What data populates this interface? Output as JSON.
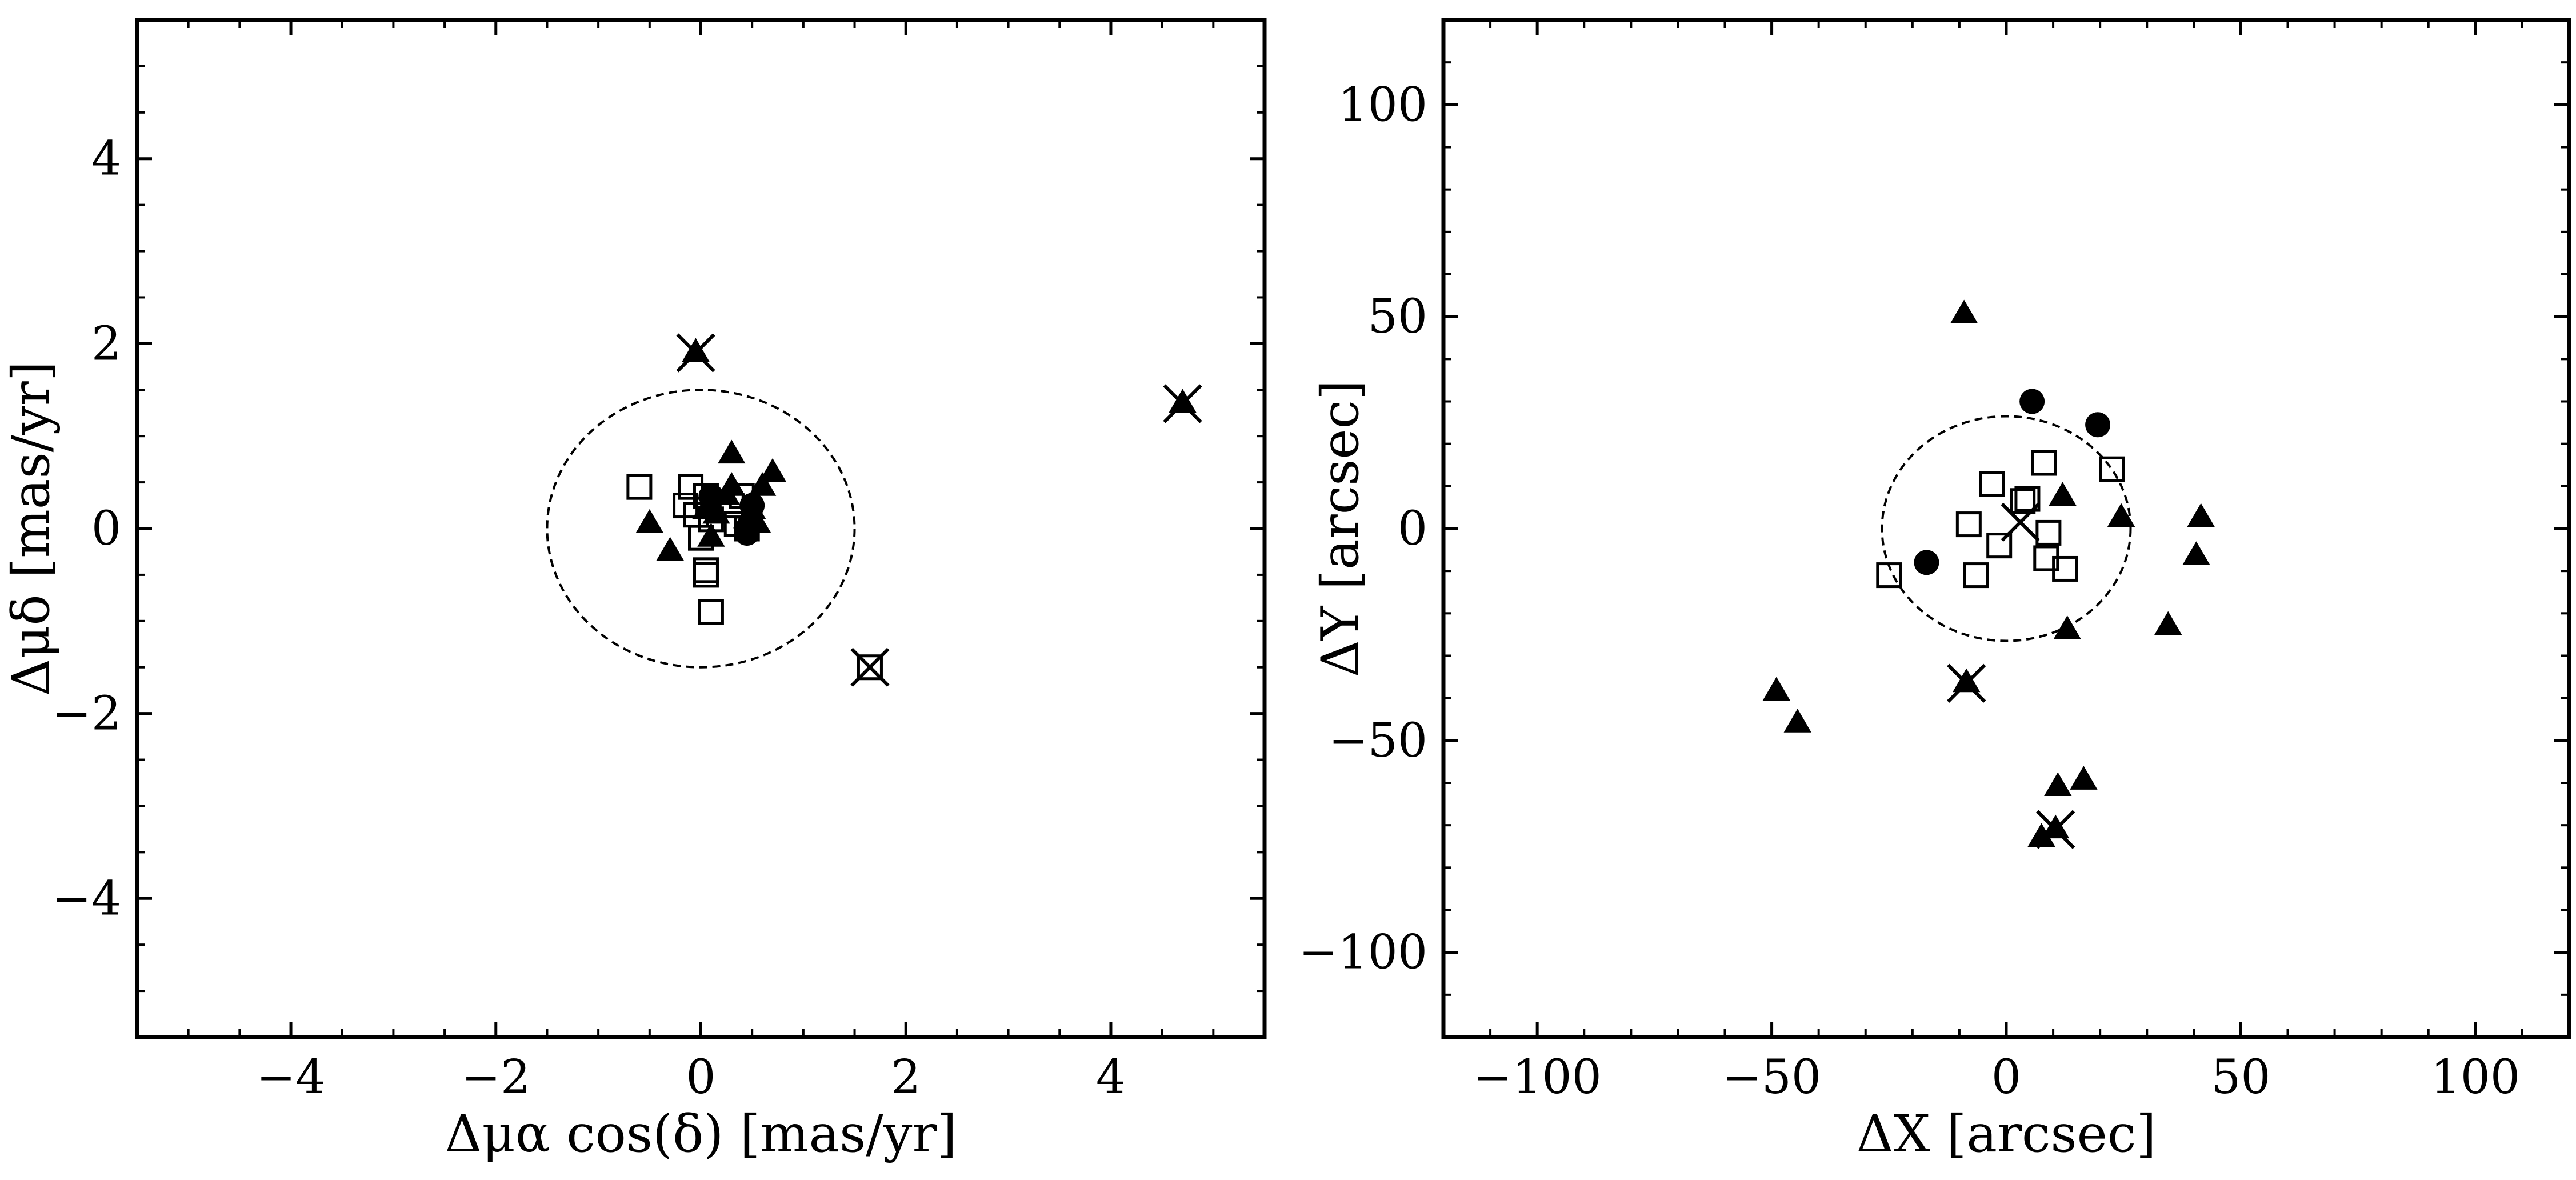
{
  "figure": {
    "background": "#ffffff",
    "ink": "#000000"
  },
  "chart_data": [
    {
      "id": "left",
      "type": "scatter",
      "title": "",
      "xlabel": "Δμα cos(δ) [mas/yr]",
      "ylabel": "Δμδ [mas/yr]",
      "xlim": [
        -5.5,
        5.5
      ],
      "ylim": [
        -5.5,
        5.5
      ],
      "xticks": [
        -4,
        -2,
        0,
        2,
        4
      ],
      "yticks": [
        -4,
        -2,
        0,
        2,
        4
      ],
      "xtick_labels": [
        "−4",
        "−2",
        "0",
        "2",
        "4"
      ],
      "ytick_labels": [
        "−4",
        "−2",
        "0",
        "2",
        "4"
      ],
      "minor_step": 0.5,
      "grid": false,
      "legend": "none",
      "dashed_circle": {
        "cx": 0,
        "cy": 0,
        "r": 1.5
      },
      "squares": [
        [
          -0.6,
          0.45
        ],
        [
          -0.1,
          0.45
        ],
        [
          -0.15,
          0.25
        ],
        [
          0.05,
          0.35
        ],
        [
          -0.05,
          0.15
        ],
        [
          0.1,
          0.1
        ],
        [
          0.3,
          0.25
        ],
        [
          0.4,
          0.35
        ],
        [
          0.35,
          0.05
        ],
        [
          0.45,
          0.0
        ],
        [
          0.0,
          -0.1
        ],
        [
          0.05,
          -0.45
        ],
        [
          0.05,
          -0.5
        ],
        [
          0.1,
          -0.9
        ]
      ],
      "circles": [
        [
          0.1,
          0.35
        ],
        [
          0.45,
          -0.05
        ],
        [
          0.5,
          0.25
        ]
      ],
      "triangles": [
        [
          -0.5,
          0.05
        ],
        [
          -0.3,
          -0.25
        ],
        [
          0.05,
          0.2
        ],
        [
          0.15,
          0.15
        ],
        [
          0.25,
          0.35
        ],
        [
          0.3,
          0.8
        ],
        [
          0.3,
          0.45
        ],
        [
          0.5,
          0.2
        ],
        [
          0.55,
          0.05
        ],
        [
          0.6,
          0.45
        ],
        [
          0.7,
          0.6
        ],
        [
          0.45,
          0.1
        ],
        [
          0.1,
          -0.1
        ],
        [
          -0.05,
          1.9
        ],
        [
          4.7,
          1.35
        ]
      ],
      "crosses": [
        [
          -0.05,
          1.9
        ],
        [
          4.7,
          1.35
        ],
        [
          1.65,
          -1.5
        ]
      ],
      "square_crosses": [
        [
          1.65,
          -1.5
        ]
      ]
    },
    {
      "id": "right",
      "type": "scatter",
      "title": "",
      "xlabel": "ΔX [arcsec]",
      "ylabel": "ΔY [arcsec]",
      "xlim": [
        -120,
        120
      ],
      "ylim": [
        -120,
        120
      ],
      "xticks": [
        -100,
        -50,
        0,
        50,
        100
      ],
      "yticks": [
        -100,
        -50,
        0,
        50,
        100
      ],
      "xtick_labels": [
        "−100",
        "−50",
        "0",
        "50",
        "100"
      ],
      "ytick_labels": [
        "−100",
        "−50",
        "0",
        "50",
        "100"
      ],
      "minor_step": 10,
      "grid": false,
      "legend": "none",
      "dashed_circle": {
        "cx": 0,
        "cy": 0,
        "r": 26.5
      },
      "squares": [
        [
          -25,
          -11
        ],
        [
          -8,
          1
        ],
        [
          -3,
          10.5
        ],
        [
          -6.5,
          -11
        ],
        [
          -1.5,
          -4
        ],
        [
          3.5,
          6.5
        ],
        [
          4.5,
          7
        ],
        [
          8,
          15.5
        ],
        [
          9,
          -1
        ],
        [
          8.5,
          -7
        ],
        [
          12.5,
          -9.5
        ],
        [
          22.5,
          14
        ]
      ],
      "circles": [
        [
          -17,
          -8
        ],
        [
          5.5,
          30
        ],
        [
          19.5,
          24.5
        ]
      ],
      "triangles": [
        [
          -9,
          50.5
        ],
        [
          12,
          7.5
        ],
        [
          24.5,
          2.5
        ],
        [
          13,
          -24
        ],
        [
          34.5,
          -23
        ],
        [
          40.5,
          -6.5
        ],
        [
          41.5,
          2.5
        ],
        [
          -49,
          -38.5
        ],
        [
          -44.5,
          -46
        ],
        [
          11,
          -61
        ],
        [
          16.5,
          -59.5
        ],
        [
          7.5,
          -73
        ],
        [
          -8.5,
          -36.5
        ],
        [
          10.5,
          -71
        ]
      ],
      "crosses": [
        [
          -8.5,
          -36.5
        ],
        [
          10.5,
          -71
        ],
        [
          3,
          1.5
        ]
      ],
      "square_crosses": []
    }
  ]
}
